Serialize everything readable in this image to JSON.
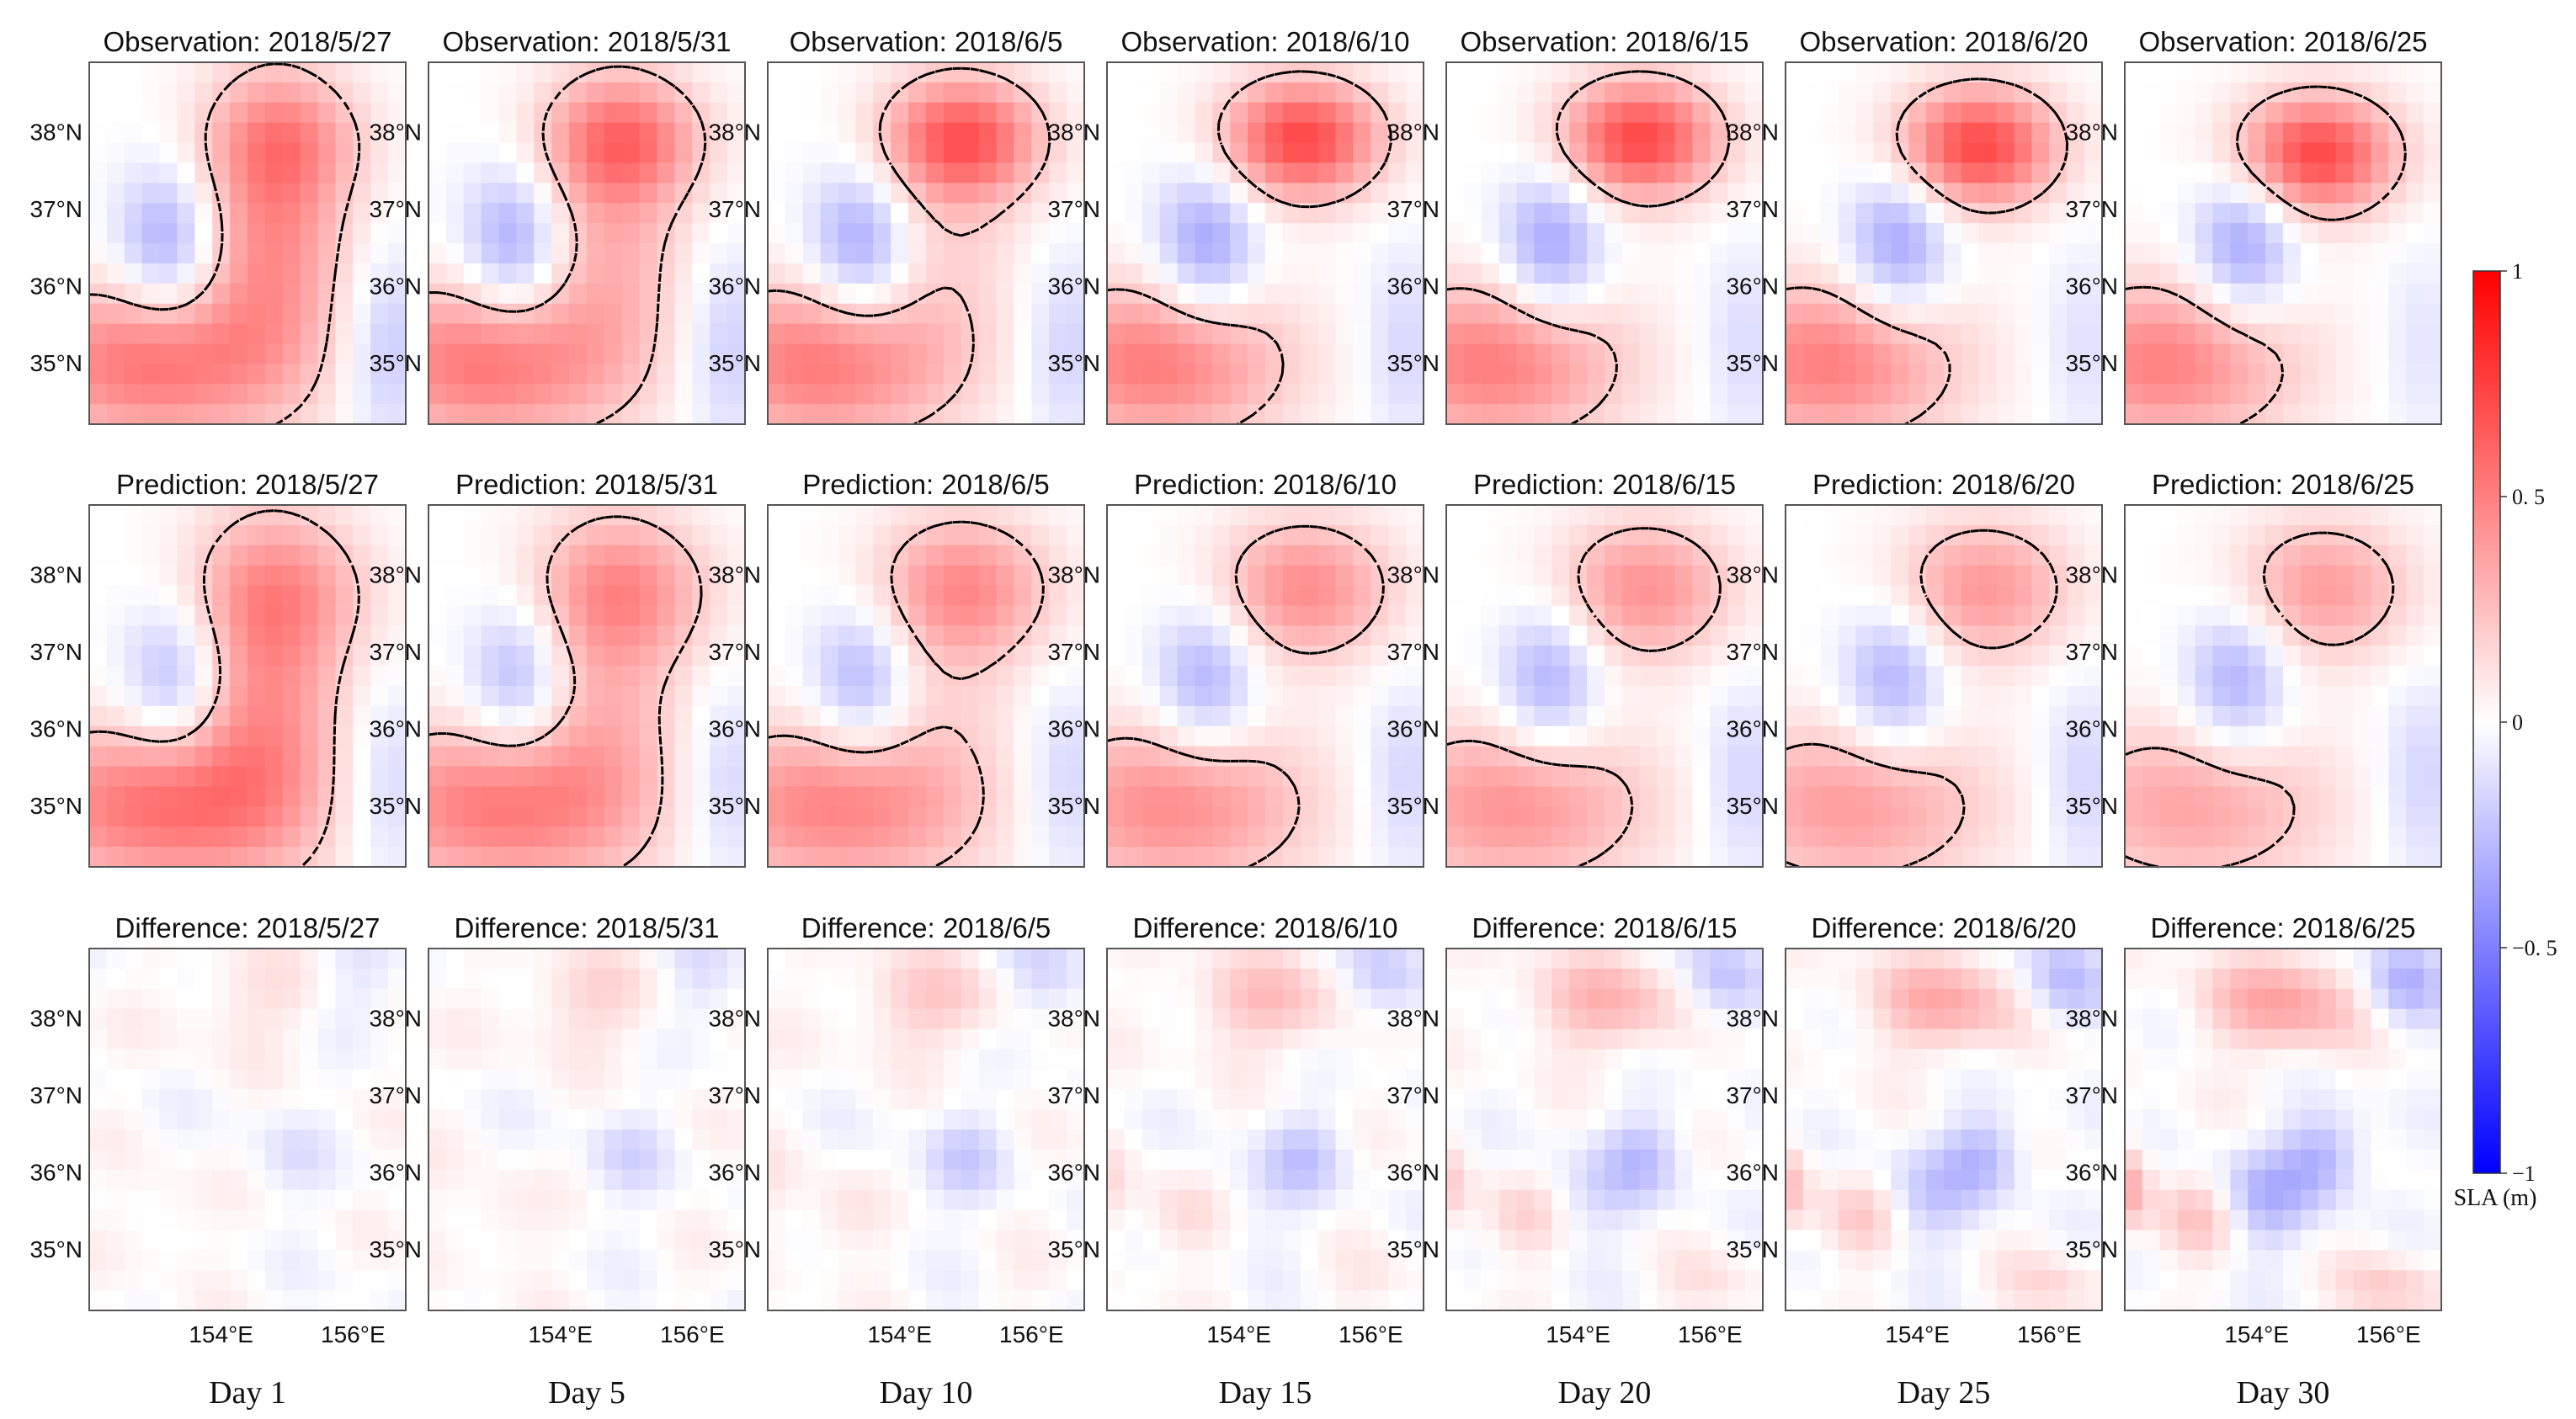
{
  "chart_data": {
    "type": "heatmap",
    "title": "",
    "row_prefixes": [
      "Observation: ",
      "Prediction: ",
      "Difference: "
    ],
    "dates": [
      "2018/5/27",
      "2018/5/31",
      "2018/6/5",
      "2018/6/10",
      "2018/6/15",
      "2018/6/20",
      "2018/6/25"
    ],
    "day_labels": [
      "Day 1",
      "Day 5",
      "Day 10",
      "Day 15",
      "Day 20",
      "Day 25",
      "Day 30"
    ],
    "lat_ticks": [
      {
        "value": 38,
        "label": "38°N"
      },
      {
        "value": 37,
        "label": "37°N"
      },
      {
        "value": 36,
        "label": "36°N"
      },
      {
        "value": 35,
        "label": "35°N"
      }
    ],
    "lon_ticks": [
      {
        "value": 154,
        "label": "154°E"
      },
      {
        "value": 156,
        "label": "156°E"
      }
    ],
    "xlim": [
      152.0,
      156.8
    ],
    "ylim": [
      34.2,
      38.9
    ],
    "colorbar": {
      "label": "SLA (m)",
      "ticks": [
        {
          "value": 1,
          "label": "1"
        },
        {
          "value": 0.5,
          "label": "0. 5"
        },
        {
          "value": 0,
          "label": "0"
        },
        {
          "value": -0.5,
          "label": "−0. 5"
        },
        {
          "value": -1,
          "label": "−1"
        }
      ],
      "range": [
        -1,
        1
      ],
      "colors": {
        "max": "#ff0000",
        "mid": "#ffffff",
        "min": "#0000ff"
      }
    },
    "contour_level": 0.2,
    "feature_notes": {
      "anticyclone_north_lat": [
        37.9,
        37.9,
        37.9,
        37.9,
        37.9,
        37.8,
        37.7
      ],
      "southern_warm_lat": 35.0,
      "western_cold_lat": 36.5
    }
  }
}
